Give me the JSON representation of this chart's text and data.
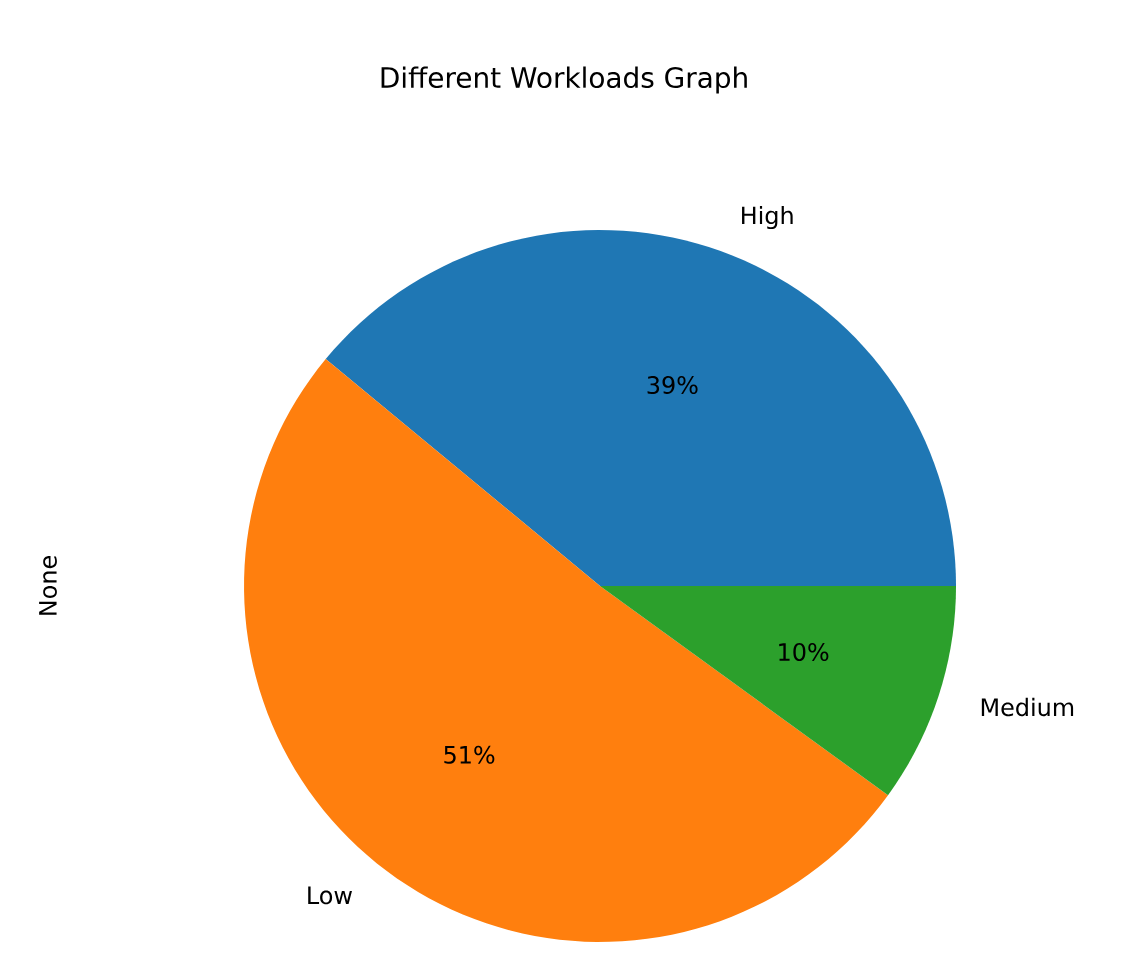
{
  "chart_data": {
    "type": "pie",
    "title": "Different Workloads Graph",
    "ylabel": "None",
    "categories": [
      "High",
      "Low",
      "Medium"
    ],
    "values": [
      39,
      51,
      10
    ],
    "colors": [
      "#1f77b4",
      "#ff7f0e",
      "#2ca02c"
    ],
    "value_labels": [
      "39%",
      "51%",
      "10%"
    ]
  }
}
